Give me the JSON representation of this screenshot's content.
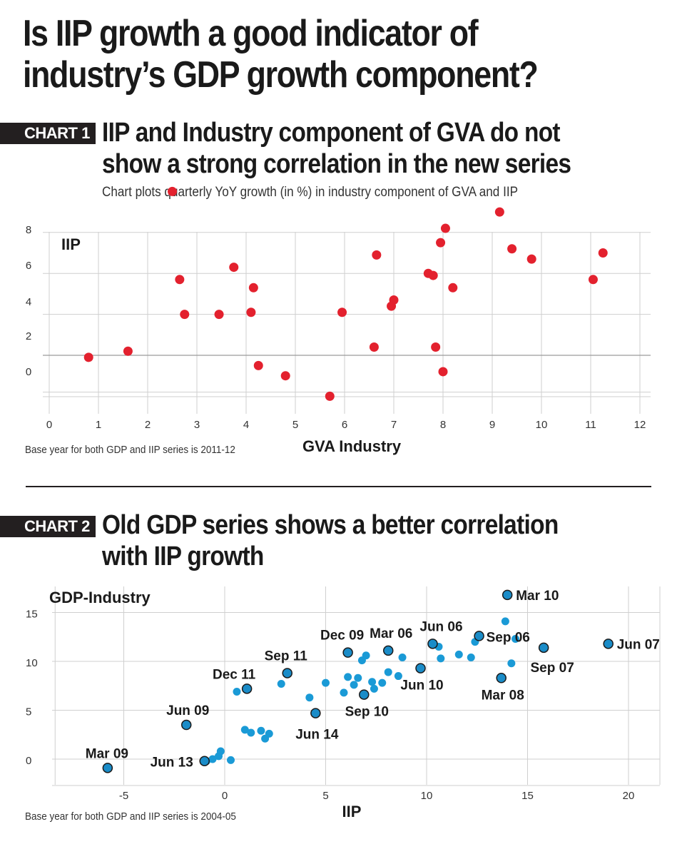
{
  "page": {
    "title_line1": "Is IIP growth a good indicator of",
    "title_line2": "industry’s GDP growth component?"
  },
  "chart1": {
    "tag": "CHART 1",
    "heading_line1": "IIP and Industry component of GVA do not",
    "heading_line2": "show a strong correlation in the new series",
    "subtitle": "Chart plots quarterly YoY growth (in %) in industry component of GVA and IIP",
    "footnote": "Base year for both GDP and IIP series is 2011-12"
  },
  "chart2": {
    "tag": "CHART 2",
    "heading_line1": "Old GDP series shows a better correlation",
    "heading_line2": "with IIP growth",
    "footnote": "Base year for both GDP and IIP series is 2004-05"
  },
  "colors": {
    "chart1_dot": "#e3212e",
    "chart2_dot": "#1a9ad6",
    "chart2_labeled_dot": "#1a8cc8",
    "text": "#1a1a1a",
    "tag_bg": "#231f20"
  },
  "chart_data": [
    {
      "type": "scatter",
      "title": "IIP and Industry component of GVA do not show a strong correlation in the new series",
      "subtitle": "Chart plots quarterly YoY growth (in %) in industry component of GVA and IIP",
      "xlabel": "GVA Industry",
      "ylabel": "IIP",
      "xlim": [
        0,
        12
      ],
      "ylim": [
        -2,
        8
      ],
      "xticks": [
        0,
        1,
        2,
        3,
        4,
        5,
        6,
        7,
        8,
        9,
        10,
        11,
        12
      ],
      "yticks": [
        0,
        2,
        4,
        6,
        8
      ],
      "grid": true,
      "points": [
        {
          "x": 0.8,
          "y": -0.1
        },
        {
          "x": 1.6,
          "y": 0.2
        },
        {
          "x": 2.5,
          "y": 8.0
        },
        {
          "x": 2.65,
          "y": 3.7
        },
        {
          "x": 2.75,
          "y": 2.0
        },
        {
          "x": 3.45,
          "y": 2.0
        },
        {
          "x": 3.75,
          "y": 4.3
        },
        {
          "x": 4.1,
          "y": 2.1
        },
        {
          "x": 4.15,
          "y": 3.3
        },
        {
          "x": 4.25,
          "y": -0.5
        },
        {
          "x": 4.8,
          "y": -1.0
        },
        {
          "x": 5.7,
          "y": -2.0
        },
        {
          "x": 5.95,
          "y": 2.1
        },
        {
          "x": 6.6,
          "y": 0.4
        },
        {
          "x": 6.65,
          "y": 4.9
        },
        {
          "x": 6.95,
          "y": 2.4
        },
        {
          "x": 7.0,
          "y": 2.7
        },
        {
          "x": 7.7,
          "y": 4.0
        },
        {
          "x": 7.8,
          "y": 3.9
        },
        {
          "x": 7.85,
          "y": 0.4
        },
        {
          "x": 7.95,
          "y": 5.5
        },
        {
          "x": 8.0,
          "y": -0.8
        },
        {
          "x": 8.05,
          "y": 6.2
        },
        {
          "x": 8.2,
          "y": 3.3
        },
        {
          "x": 9.15,
          "y": 7.0
        },
        {
          "x": 9.4,
          "y": 5.2
        },
        {
          "x": 9.8,
          "y": 4.7
        },
        {
          "x": 11.05,
          "y": 3.7
        },
        {
          "x": 11.25,
          "y": 5.0
        }
      ]
    },
    {
      "type": "scatter",
      "title": "Old GDP series shows a better correlation with IIP growth",
      "xlabel": "IIP",
      "ylabel": "GDP-Industry",
      "xlim": [
        -8.5,
        21.5
      ],
      "ylim": [
        -2.5,
        18
      ],
      "xticks": [
        -5,
        0,
        5,
        10,
        15,
        20
      ],
      "yticks": [
        0,
        5,
        10,
        15
      ],
      "grid": true,
      "labeled_points": [
        {
          "label": "Mar 09",
          "x": -5.8,
          "y": -0.9
        },
        {
          "label": "Jun 09",
          "x": -1.9,
          "y": 3.5
        },
        {
          "label": "Jun 13",
          "x": -1.0,
          "y": -0.2
        },
        {
          "label": "Dec 11",
          "x": 1.1,
          "y": 7.2
        },
        {
          "label": "Sep 11",
          "x": 3.1,
          "y": 8.8
        },
        {
          "label": "Jun 14",
          "x": 4.5,
          "y": 4.7
        },
        {
          "label": "Dec 09",
          "x": 6.1,
          "y": 10.9
        },
        {
          "label": "Sep 10",
          "x": 6.9,
          "y": 6.6
        },
        {
          "label": "Mar 06",
          "x": 8.1,
          "y": 11.1
        },
        {
          "label": "Jun 10",
          "x": 9.7,
          "y": 9.3
        },
        {
          "label": "Jun 06",
          "x": 10.3,
          "y": 11.8
        },
        {
          "label": "Sep 06",
          "x": 12.6,
          "y": 12.6
        },
        {
          "label": "Mar 10",
          "x": 14.0,
          "y": 16.8
        },
        {
          "label": "Mar 08",
          "x": 13.7,
          "y": 8.3
        },
        {
          "label": "Sep 07",
          "x": 15.8,
          "y": 11.4
        },
        {
          "label": "Jun 07",
          "x": 19.0,
          "y": 11.8
        }
      ],
      "points": [
        {
          "x": -0.9,
          "y": -0.2
        },
        {
          "x": -0.6,
          "y": 0.0
        },
        {
          "x": -0.3,
          "y": 0.3
        },
        {
          "x": -0.2,
          "y": 0.8
        },
        {
          "x": 0.3,
          "y": -0.1
        },
        {
          "x": 0.6,
          "y": 6.9
        },
        {
          "x": 1.0,
          "y": 3.0
        },
        {
          "x": 1.3,
          "y": 2.7
        },
        {
          "x": 1.8,
          "y": 2.9
        },
        {
          "x": 2.0,
          "y": 2.1
        },
        {
          "x": 2.2,
          "y": 2.6
        },
        {
          "x": 2.8,
          "y": 7.7
        },
        {
          "x": 4.2,
          "y": 6.3
        },
        {
          "x": 5.0,
          "y": 7.8
        },
        {
          "x": 5.9,
          "y": 6.8
        },
        {
          "x": 6.1,
          "y": 8.4
        },
        {
          "x": 6.4,
          "y": 7.6
        },
        {
          "x": 6.6,
          "y": 8.3
        },
        {
          "x": 6.8,
          "y": 10.1
        },
        {
          "x": 7.0,
          "y": 10.6
        },
        {
          "x": 7.3,
          "y": 7.9
        },
        {
          "x": 7.4,
          "y": 7.2
        },
        {
          "x": 7.8,
          "y": 7.8
        },
        {
          "x": 8.1,
          "y": 8.9
        },
        {
          "x": 8.6,
          "y": 8.5
        },
        {
          "x": 8.8,
          "y": 10.4
        },
        {
          "x": 10.6,
          "y": 11.5
        },
        {
          "x": 10.7,
          "y": 10.3
        },
        {
          "x": 11.6,
          "y": 10.7
        },
        {
          "x": 12.2,
          "y": 10.4
        },
        {
          "x": 12.4,
          "y": 12.0
        },
        {
          "x": 13.9,
          "y": 14.1
        },
        {
          "x": 14.2,
          "y": 9.8
        },
        {
          "x": 14.4,
          "y": 12.3
        }
      ]
    }
  ]
}
